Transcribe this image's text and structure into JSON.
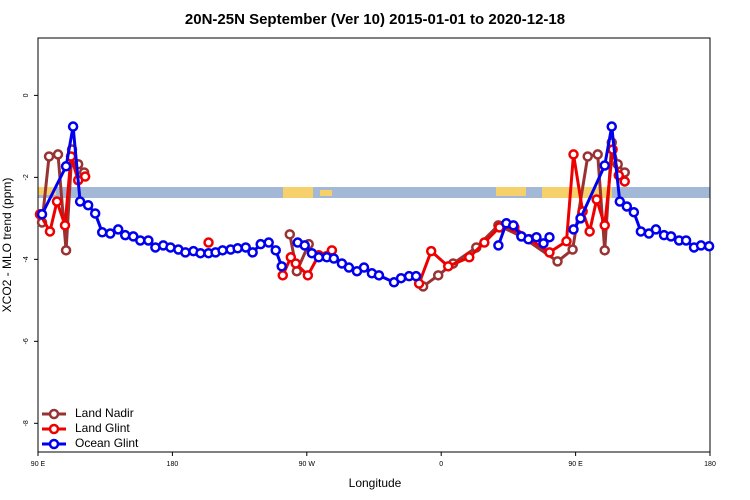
{
  "chart_data": {
    "type": "line",
    "title": "20N-25N September (Ver 10)   2015-01-01 to 2020-12-18",
    "x_label": "Longitude",
    "y_label": "XCO2 - MLO trend (ppm)",
    "xlim": [
      90,
      540
    ],
    "ylim": [
      -8.7,
      1.4
    ],
    "xticks": [
      {
        "value": 90,
        "label": "90 E"
      },
      180,
      {
        "value": 270,
        "label": "90 W"
      },
      {
        "value": 360,
        "label": "0"
      },
      {
        "value": 450,
        "label": "90 E"
      },
      {
        "value": 540,
        "label": "180"
      }
    ],
    "yticks": [
      -8,
      -6,
      -4,
      -2,
      0
    ],
    "legend": "bottom-left",
    "series": [
      {
        "name": "Land Nadir",
        "color": "#993333",
        "x": [
          92.7,
          97.4,
          103.4,
          108.8,
          112.8,
          116.9,
          120.9,
          null,
          258.6,
          263.3,
          271.3,
          null,
          347.9,
          358,
          368,
          383.5,
          398.3,
          413.7,
          437.9,
          448,
          458.1,
          464.8,
          469.5,
          474.2,
          478.2,
          482.9
        ],
        "values": [
          -3.1,
          -1.49,
          -1.44,
          -3.78,
          -1.32,
          -1.68,
          -1.88,
          null,
          -3.39,
          -4.29,
          -3.63,
          null,
          -4.66,
          -4.39,
          -4.1,
          -3.71,
          -3.17,
          -3.44,
          -4.05,
          -3.76,
          -1.49,
          -1.44,
          -3.78,
          -1.15,
          -1.68,
          -1.88
        ]
      },
      {
        "name": "Land Glint",
        "color": "#ee0000",
        "x": [
          91.3,
          98,
          102.7,
          108.1,
          112.1,
          116.9,
          121.6,
          null,
          204.2,
          null,
          253.9,
          259.3,
          262.6,
          270.7,
          278,
          286.8,
          null,
          345.2,
          353.3,
          364.7,
          378.8,
          388.9,
          399,
          409,
          419.1,
          432.5,
          443.9,
          448.6,
          454.7,
          459.4,
          464.1,
          469.5,
          474.8,
          478.9,
          482.9
        ],
        "values": [
          -2.9,
          -3.32,
          -2.59,
          -3.17,
          -1.49,
          -2.07,
          -1.98,
          null,
          -3.59,
          null,
          -4.39,
          -3.95,
          -4.1,
          -4.39,
          -3.9,
          -3.78,
          null,
          -4.59,
          -3.8,
          -4.17,
          -3.95,
          -3.59,
          -3.22,
          -3.22,
          -3.51,
          -3.83,
          -3.56,
          -1.44,
          -2.83,
          -3.32,
          -2.54,
          -3.17,
          -1.32,
          -1.95,
          -2.1
        ]
      },
      {
        "name": "Ocean Glint",
        "color": "#0000ee",
        "x": [
          92.7,
          108.8,
          113.5,
          118.2,
          123.6,
          128.3,
          133,
          138.4,
          143.7,
          148.4,
          153.8,
          158.5,
          163.9,
          168.6,
          173.9,
          178.7,
          184,
          188.7,
          194.1,
          198.8,
          204.2,
          208.9,
          213.6,
          219,
          223.7,
          229.1,
          233.7,
          239.1,
          244.5,
          249.2,
          253.2,
          null,
          263.9,
          268.6,
          273.4,
          278,
          283.4,
          288.1,
          293.5,
          298.2,
          303.6,
          308.3,
          313.6,
          318.3,
          328.4,
          333.1,
          338.5,
          343.2,
          null,
          398.3,
          403.6,
          408.3,
          413.7,
          418.4,
          423.8,
          428.5,
          432.5,
          null,
          448.6,
          453.3,
          469.5,
          474.2,
          479.6,
          484.3,
          489,
          493.7,
          499.1,
          503.8,
          509.2,
          513.9,
          519.3,
          524,
          529.3,
          534,
          539.4
        ],
        "values": [
          -2.9,
          -1.73,
          -0.76,
          -2.59,
          -2.68,
          -2.88,
          -3.34,
          -3.37,
          -3.27,
          -3.41,
          -3.44,
          -3.54,
          -3.54,
          -3.71,
          -3.66,
          -3.71,
          -3.76,
          -3.83,
          -3.8,
          -3.85,
          -3.85,
          -3.83,
          -3.78,
          -3.76,
          -3.73,
          -3.71,
          -3.83,
          -3.63,
          -3.59,
          -3.78,
          -4.17,
          null,
          -3.59,
          -3.66,
          -3.85,
          -3.95,
          -3.95,
          -3.98,
          -4.1,
          -4.2,
          -4.29,
          -4.2,
          -4.34,
          -4.39,
          -4.56,
          -4.46,
          -4.41,
          -4.41,
          null,
          -3.66,
          -3.12,
          -3.17,
          -3.44,
          -3.51,
          -3.46,
          -3.61,
          -3.46,
          null,
          -3.27,
          -3.0,
          -1.71,
          -0.76,
          -2.59,
          -2.71,
          -2.85,
          -3.32,
          -3.37,
          -3.27,
          -3.41,
          -3.44,
          -3.54,
          -3.54,
          -3.71,
          -3.66,
          -3.68
        ]
      }
    ]
  }
}
